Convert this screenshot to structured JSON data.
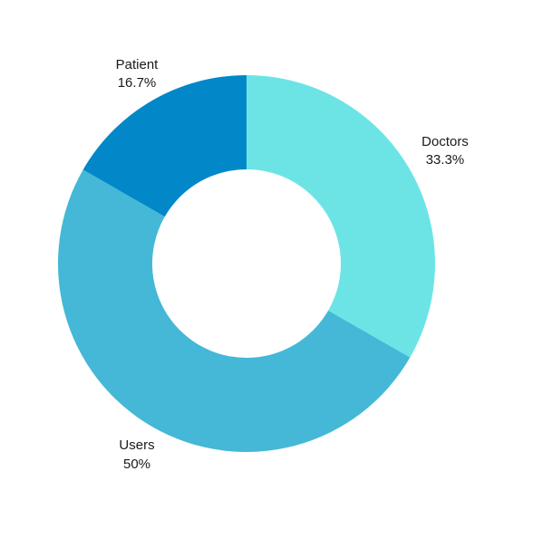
{
  "chart_data": {
    "type": "pie",
    "donut": true,
    "title": "",
    "slices": [
      {
        "label": "Doctors",
        "value": 33.3,
        "value_label": "33.3%",
        "color": "#6ce4e6"
      },
      {
        "label": "Users",
        "value": 50,
        "value_label": "50%",
        "color": "#44b8d6"
      },
      {
        "label": "Patient",
        "value": 16.7,
        "value_label": "16.7%",
        "color": "#0288c9"
      }
    ]
  }
}
